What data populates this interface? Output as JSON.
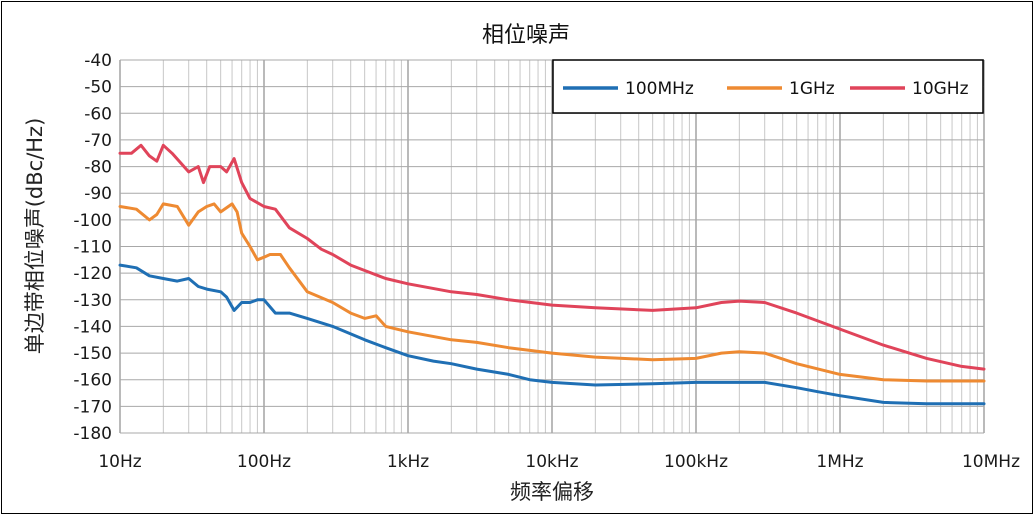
{
  "chart_data": {
    "type": "line",
    "title": "相位噪声",
    "xlabel": "频率偏移",
    "ylabel": "单边带相位噪声(dBc/Hz)",
    "xscale": "log",
    "xlim": [
      10,
      10000000
    ],
    "ylim": [
      -180,
      -40
    ],
    "xticks": [
      10,
      100,
      1000,
      10000,
      100000,
      1000000,
      10000000
    ],
    "xtick_labels": [
      "10Hz",
      "100Hz",
      "1kHz",
      "10kHz",
      "100kHz",
      "1MHz",
      "10MHz"
    ],
    "yticks": [
      -40,
      -50,
      -60,
      -70,
      -80,
      -90,
      -100,
      -110,
      -120,
      -130,
      -140,
      -150,
      -160,
      -170,
      -180
    ],
    "ytick_labels": [
      "-40",
      "-50",
      "-60",
      "-70",
      "-80",
      "-90",
      "-100",
      "-110",
      "-120",
      "-130",
      "-140",
      "-150",
      "-160",
      "-170",
      "-180"
    ],
    "grid": true,
    "legend_position": "top-right",
    "series": [
      {
        "name": "100MHz",
        "color": "#1f6fb4",
        "points": [
          [
            10,
            -117
          ],
          [
            13,
            -118
          ],
          [
            16,
            -121
          ],
          [
            20,
            -122
          ],
          [
            25,
            -123
          ],
          [
            30,
            -122
          ],
          [
            35,
            -125
          ],
          [
            40,
            -126
          ],
          [
            50,
            -127
          ],
          [
            55,
            -129
          ],
          [
            62,
            -134
          ],
          [
            70,
            -131
          ],
          [
            80,
            -131
          ],
          [
            90,
            -130
          ],
          [
            100,
            -130
          ],
          [
            120,
            -135
          ],
          [
            150,
            -135
          ],
          [
            200,
            -137
          ],
          [
            300,
            -140
          ],
          [
            500,
            -145
          ],
          [
            700,
            -148
          ],
          [
            1000,
            -151
          ],
          [
            1500,
            -153
          ],
          [
            2000,
            -154
          ],
          [
            3000,
            -156
          ],
          [
            5000,
            -158
          ],
          [
            7000,
            -160
          ],
          [
            10000,
            -161
          ],
          [
            20000,
            -162
          ],
          [
            50000,
            -161.5
          ],
          [
            100000,
            -161
          ],
          [
            150000,
            -161
          ],
          [
            200000,
            -161
          ],
          [
            300000,
            -161
          ],
          [
            500000,
            -163
          ],
          [
            700000,
            -164.5
          ],
          [
            1000000,
            -166
          ],
          [
            2000000,
            -168.5
          ],
          [
            4000000,
            -169
          ],
          [
            10000000,
            -169
          ]
        ]
      },
      {
        "name": "1GHz",
        "color": "#ee8a32",
        "points": [
          [
            10,
            -95
          ],
          [
            13,
            -96
          ],
          [
            16,
            -100
          ],
          [
            18,
            -98
          ],
          [
            20,
            -94
          ],
          [
            25,
            -95
          ],
          [
            30,
            -102
          ],
          [
            35,
            -97
          ],
          [
            40,
            -95
          ],
          [
            45,
            -94
          ],
          [
            50,
            -97
          ],
          [
            60,
            -94
          ],
          [
            65,
            -97
          ],
          [
            70,
            -105
          ],
          [
            80,
            -110
          ],
          [
            90,
            -115
          ],
          [
            100,
            -114
          ],
          [
            110,
            -113
          ],
          [
            130,
            -113
          ],
          [
            150,
            -118
          ],
          [
            200,
            -127
          ],
          [
            300,
            -131
          ],
          [
            400,
            -135
          ],
          [
            500,
            -137
          ],
          [
            600,
            -136
          ],
          [
            700,
            -140
          ],
          [
            1000,
            -142
          ],
          [
            2000,
            -145
          ],
          [
            3000,
            -146
          ],
          [
            5000,
            -148
          ],
          [
            10000,
            -150
          ],
          [
            20000,
            -151.5
          ],
          [
            50000,
            -152.5
          ],
          [
            100000,
            -152
          ],
          [
            150000,
            -150
          ],
          [
            200000,
            -149.5
          ],
          [
            300000,
            -150
          ],
          [
            500000,
            -154
          ],
          [
            1000000,
            -158
          ],
          [
            2000000,
            -160
          ],
          [
            4000000,
            -160.5
          ],
          [
            10000000,
            -160.5
          ]
        ]
      },
      {
        "name": "10GHz",
        "color": "#e0445a",
        "points": [
          [
            10,
            -75
          ],
          [
            12,
            -75
          ],
          [
            14,
            -72
          ],
          [
            16,
            -76
          ],
          [
            18,
            -78
          ],
          [
            20,
            -72
          ],
          [
            23,
            -75
          ],
          [
            30,
            -82
          ],
          [
            35,
            -80
          ],
          [
            38,
            -86
          ],
          [
            42,
            -80
          ],
          [
            50,
            -80
          ],
          [
            55,
            -82
          ],
          [
            62,
            -77
          ],
          [
            70,
            -86
          ],
          [
            80,
            -92
          ],
          [
            100,
            -95
          ],
          [
            120,
            -96
          ],
          [
            150,
            -103
          ],
          [
            200,
            -107
          ],
          [
            250,
            -111
          ],
          [
            300,
            -113
          ],
          [
            400,
            -117
          ],
          [
            500,
            -119
          ],
          [
            700,
            -122
          ],
          [
            1000,
            -124
          ],
          [
            2000,
            -127
          ],
          [
            3000,
            -128
          ],
          [
            5000,
            -130
          ],
          [
            10000,
            -132
          ],
          [
            20000,
            -133
          ],
          [
            50000,
            -134
          ],
          [
            100000,
            -133
          ],
          [
            150000,
            -131
          ],
          [
            200000,
            -130.5
          ],
          [
            300000,
            -131
          ],
          [
            500000,
            -135
          ],
          [
            1000000,
            -141
          ],
          [
            2000000,
            -147
          ],
          [
            4000000,
            -152
          ],
          [
            7000000,
            -155
          ],
          [
            10000000,
            -156
          ]
        ]
      }
    ]
  }
}
